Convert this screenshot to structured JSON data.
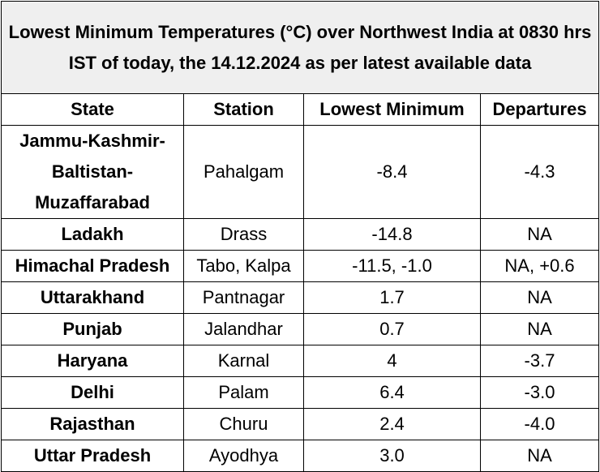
{
  "title": "Lowest Minimum Temperatures (°C) over Northwest India at 0830 hrs IST of today, the 14.12.2024 as per latest available data",
  "headers": [
    "State",
    "Station",
    "Lowest Minimum",
    "Departures"
  ],
  "rows": [
    {
      "state": "Jammu-Kashmir-Baltistan-Muzaffarabad",
      "station": "Pahalgam",
      "min": "-8.4",
      "dep": "-4.3"
    },
    {
      "state": "Ladakh",
      "station": "Drass",
      "min": "-14.8",
      "dep": "NA"
    },
    {
      "state": "Himachal Pradesh",
      "station": "Tabo, Kalpa",
      "min": "-11.5, -1.0",
      "dep": "NA, +0.6"
    },
    {
      "state": "Uttarakhand",
      "station": "Pantnagar",
      "min": "1.7",
      "dep": "NA"
    },
    {
      "state": "Punjab",
      "station": "Jalandhar",
      "min": "0.7",
      "dep": "NA"
    },
    {
      "state": "Haryana",
      "station": "Karnal",
      "min": "4",
      "dep": "-3.7"
    },
    {
      "state": "Delhi",
      "station": "Palam",
      "min": "6.4",
      "dep": "-3.0"
    },
    {
      "state": "Rajasthan",
      "station": "Churu",
      "min": "2.4",
      "dep": "-4.0"
    },
    {
      "state": "Uttar Pradesh",
      "station": "Ayodhya",
      "min": "3.0",
      "dep": "NA"
    }
  ]
}
